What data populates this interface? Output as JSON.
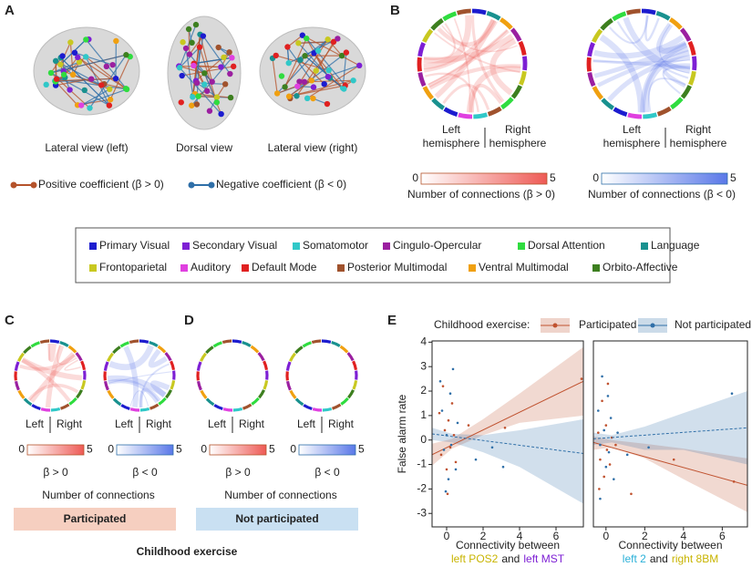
{
  "panel_labels": [
    "A",
    "B",
    "C",
    "D",
    "E"
  ],
  "brain_views": [
    "Lateral view (left)",
    "Dorsal view",
    "Lateral view (right)"
  ],
  "coefficient_legend": [
    {
      "label": "Positive coefficient (β > 0)",
      "color": "#b5532b"
    },
    {
      "label": "Negative coefficient (β < 0)",
      "color": "#2f6fa8"
    }
  ],
  "hemispheres": {
    "left": [
      "Left",
      "hemisphere"
    ],
    "right": [
      "Right",
      "hemisphere"
    ]
  },
  "colorbars": [
    {
      "ticks": [
        0,
        5
      ],
      "label": "Number of connections (β > 0)",
      "color": "#ee5a55",
      "text_color": "#b5532b"
    },
    {
      "ticks": [
        0,
        5
      ],
      "label": "Number of connections (β < 0)",
      "color": "#5a78e8",
      "text_color": "#2f6fa8"
    }
  ],
  "networks": [
    {
      "name": "Primary Visual",
      "color": "#1c1ccf"
    },
    {
      "name": "Secondary Visual",
      "color": "#7d1fd4"
    },
    {
      "name": "Somatomotor",
      "color": "#30c8c8"
    },
    {
      "name": "Cingulo-Opercular",
      "color": "#9b1fa0"
    },
    {
      "name": "Dorsal Attention",
      "color": "#2fdc3f"
    },
    {
      "name": "Language",
      "color": "#19918f"
    },
    {
      "name": "Frontoparietal",
      "color": "#c8c820"
    },
    {
      "name": "Auditory",
      "color": "#e040e0"
    },
    {
      "name": "Default Mode",
      "color": "#e02020"
    },
    {
      "name": "Posterior Multimodal",
      "color": "#a0522d"
    },
    {
      "name": "Ventral Multimodal",
      "color": "#f0a010"
    },
    {
      "name": "Orbito-Affective",
      "color": "#3d7f1f"
    }
  ],
  "small_panels": [
    {
      "side_labels": [
        "Left",
        "Right"
      ],
      "colorbars": [
        {
          "ticks": [
            0,
            5
          ],
          "label": "β > 0"
        },
        {
          "ticks": [
            0,
            5
          ],
          "label": "β < 0"
        }
      ],
      "caption": "Number of connections",
      "group": "Participated",
      "group_color": "#f6cfc0",
      "chords": true
    },
    {
      "side_labels": [
        "Left",
        "Right"
      ],
      "colorbars": [
        {
          "ticks": [
            0,
            5
          ],
          "label": "β > 0"
        },
        {
          "ticks": [
            0,
            5
          ],
          "label": "β < 0"
        }
      ],
      "caption": "Number of connections",
      "group": "Not participated",
      "group_color": "#c9e0f2",
      "chords": false
    }
  ],
  "footer": "Childhood exercise",
  "legend_title": "Childhood exercise:",
  "y_label": "False alarm rate",
  "chart_data": [
    {
      "type": "scatter",
      "x_label": {
        "line1": "Connectivity between",
        "line2": [
          {
            "text": "left POS2",
            "color": "#c8b400"
          },
          {
            "text": "and",
            "color": "#222222"
          },
          {
            "text": "left MST",
            "color": "#7d1fd4"
          }
        ]
      },
      "xlim": [
        -0.8,
        7.5
      ],
      "xticks": [
        0,
        2,
        4,
        6
      ],
      "ylim": [
        -3.55,
        4.05
      ],
      "yticks": [
        -3,
        -2,
        -1,
        0,
        1,
        2,
        3,
        4
      ],
      "series": [
        {
          "name": "Participated",
          "color": "#c0522f",
          "dashed": false,
          "x": [
            -0.3,
            -0.1,
            0,
            0.1,
            0.2,
            0.3,
            -0.2,
            0.5,
            0.05,
            0.4,
            1.2,
            3.2,
            7.4,
            -0.4
          ],
          "values": [
            -0.6,
            0.4,
            -1.2,
            0.8,
            -0.3,
            1.5,
            2.2,
            -0.9,
            -2.2,
            0.2,
            0.6,
            0.5,
            2.5,
            1.1
          ],
          "fit": {
            "x": [
              -0.8,
              7.5
            ],
            "y": [
              -0.6,
              2.4
            ]
          },
          "band": {
            "x": [
              -0.8,
              0.3,
              2,
              4,
              7.5
            ],
            "upper": [
              -0.15,
              0.05,
              0.85,
              1.9,
              3.8
            ],
            "lower": [
              -1.05,
              -0.35,
              0.2,
              0.7,
              1.0
            ]
          }
        },
        {
          "name": "Not participated",
          "color": "#2f6fa8",
          "dashed": true,
          "x": [
            -0.35,
            -0.25,
            -0.15,
            0,
            0.1,
            0.2,
            0.25,
            0.35,
            0.5,
            0.6,
            1.6,
            2.5,
            3.1,
            -0.05
          ],
          "values": [
            2.4,
            1.2,
            -0.4,
            0.2,
            -1.6,
            1.9,
            -0.2,
            2.9,
            -1.2,
            0.7,
            -0.8,
            -0.3,
            -1.1,
            -2.1
          ],
          "fit": {
            "x": [
              -0.8,
              7.5
            ],
            "y": [
              0.25,
              -0.55
            ]
          },
          "band": {
            "x": [
              -0.8,
              0.3,
              2,
              4,
              7.5
            ],
            "upper": [
              0.5,
              0.25,
              0.2,
              0.4,
              0.85
            ],
            "lower": [
              0,
              -0.1,
              -0.5,
              -1.1,
              -2.6
            ]
          }
        }
      ]
    },
    {
      "type": "scatter",
      "x_label": {
        "line1": "Connectivity between",
        "line2": [
          {
            "text": "left 2",
            "color": "#2ab0d8"
          },
          {
            "text": "and",
            "color": "#222222"
          },
          {
            "text": "right 8BM",
            "color": "#c8b400"
          }
        ]
      },
      "xlim": [
        -0.65,
        7.3
      ],
      "xticks": [
        0,
        2,
        4,
        6
      ],
      "ylim": [
        -3.55,
        4.05
      ],
      "series": [
        {
          "color": "#c0522f",
          "dashed": false,
          "x": [
            -0.4,
            -0.3,
            -0.2,
            -0.1,
            0,
            0.05,
            0.1,
            0.2,
            0.3,
            0.5,
            1.3,
            3.5,
            6.6,
            -0.35
          ],
          "values": [
            0.3,
            -0.8,
            1.6,
            -1.5,
            0.6,
            -0.4,
            2.3,
            -1.0,
            0.1,
            -0.2,
            -2.2,
            -0.8,
            -1.7,
            -2.0
          ],
          "fit": {
            "x": [
              -0.65,
              7.3
            ],
            "y": [
              -0.1,
              -1.85
            ]
          },
          "band": {
            "x": [
              -0.65,
              0.3,
              2,
              4,
              7.3
            ],
            "upper": [
              0.15,
              0,
              -0.15,
              -0.35,
              -0.75
            ],
            "lower": [
              -0.4,
              -0.3,
              -0.75,
              -1.6,
              -2.95
            ]
          }
        },
        {
          "color": "#2f6fa8",
          "dashed": true,
          "x": [
            -0.4,
            -0.3,
            -0.2,
            -0.1,
            0,
            0.1,
            0.15,
            0.25,
            0.4,
            0.6,
            1.1,
            2.2,
            6.5,
            -0.3
          ],
          "values": [
            1.2,
            -0.2,
            2.6,
            0.4,
            -1.1,
            1.8,
            -0.5,
            0.9,
            -1.6,
            0.3,
            -0.6,
            -0.3,
            1.9,
            -2.4
          ],
          "fit": {
            "x": [
              -0.65,
              7.3
            ],
            "y": [
              0.05,
              0.5
            ]
          },
          "band": {
            "x": [
              -0.65,
              0.3,
              2,
              4,
              7.3
            ],
            "upper": [
              0.3,
              0.2,
              0.55,
              1.1,
              2.0
            ],
            "lower": [
              -0.2,
              -0.1,
              -0.4,
              -0.4,
              -1.0
            ]
          }
        }
      ]
    }
  ]
}
